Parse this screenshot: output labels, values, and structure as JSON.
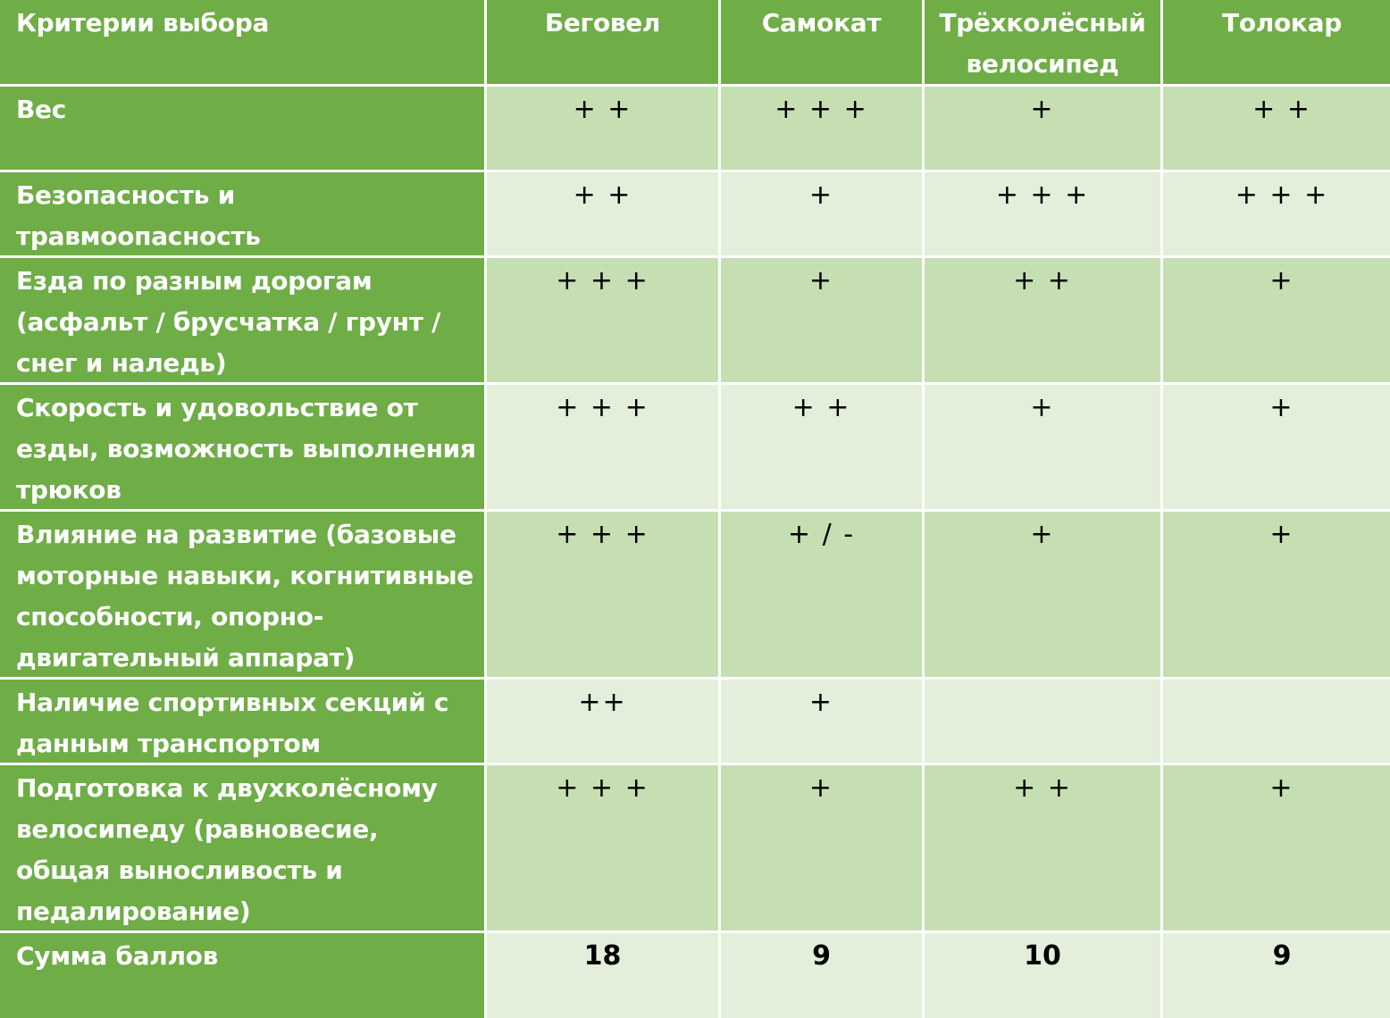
{
  "headers": [
    "Критерии выбора",
    "Беговел",
    "Самокат",
    "Трёхколёсный велосипед",
    "Толокар"
  ],
  "rows": [
    {
      "criterion": "Вес",
      "values": [
        "+ +",
        "+ + +",
        "+",
        "+ +"
      ]
    },
    {
      "criterion": "Безопасность и травмоопасность",
      "values": [
        "+ +",
        "+",
        "+ + +",
        "+ + +"
      ]
    },
    {
      "criterion": "Езда по разным дорогам (асфальт / брусчатка / грунт / снег и наледь)",
      "values": [
        "+ + +",
        "+",
        "+ +",
        "+"
      ]
    },
    {
      "criterion": "Скорость и удовольствие от езды, возможность выполнения трюков",
      "values": [
        "+ + +",
        "+ +",
        "+",
        "+"
      ]
    },
    {
      "criterion": "Влияние на развитие (базовые моторные навыки, когнитивные способности, опорно-двигательный аппарат)",
      "values": [
        "+ + +",
        "+ / -",
        "+",
        "+"
      ]
    },
    {
      "criterion": "Наличие спортивных секций с данным транспортом",
      "values": [
        "++",
        "+",
        "",
        ""
      ]
    },
    {
      "criterion": "Подготовка к двухколёсному велосипеду (равновесие, общая выносливость и педалирование)",
      "values": [
        "+ + +",
        "+",
        "+ +",
        "+"
      ]
    }
  ],
  "total": {
    "criterion": "Сумма баллов",
    "values": [
      "18",
      "9",
      "10",
      "9"
    ]
  },
  "colors": {
    "header_bg": "#6FAD47",
    "row_odd_bg": "#C5DFB3",
    "row_even_bg": "#E3EFDA",
    "grid_lines": "#FFFFFF"
  }
}
